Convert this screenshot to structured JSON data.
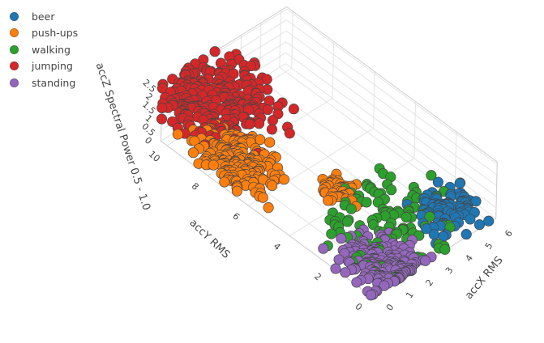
{
  "chart_data": {
    "type": "scatter3d",
    "axes": {
      "x": {
        "label": "accX RMS",
        "range": [
          0,
          6.3
        ],
        "ticks": [
          "0",
          "1",
          "2",
          "3",
          "4",
          "5",
          "6"
        ]
      },
      "y": {
        "label": "accY RMS",
        "range": [
          0,
          10.3
        ],
        "ticks": [
          "0",
          "2",
          "4",
          "6",
          "8",
          "10"
        ]
      },
      "z": {
        "label": "accZ Spectral Power 0.5 - 1.0",
        "range": [
          0,
          2.6
        ],
        "ticks": [
          "0",
          "0.5",
          "1",
          "1.5",
          "2",
          "2.5"
        ]
      }
    },
    "grid": true,
    "legend_placement": "top-left",
    "series": [
      {
        "name": "beer",
        "color": "#1f77b4",
        "n": 90,
        "center": {
          "x": 5.0,
          "y": 1.2,
          "z": 0.25
        },
        "spread": {
          "x": 0.7,
          "y": 0.45,
          "z": 0.2
        }
      },
      {
        "name": "push-ups",
        "color": "#ff7f0e",
        "n": 200,
        "center": {
          "x": 0.9,
          "y": 7.4,
          "z": 0.55
        },
        "spread": {
          "x": 0.6,
          "y": 0.9,
          "z": 0.2
        },
        "extra_cluster": {
          "n": 45,
          "center": {
            "x": 2.9,
            "y": 4.3,
            "z": 0.25
          },
          "spread": {
            "x": 0.35,
            "y": 0.35,
            "z": 0.12
          }
        }
      },
      {
        "name": "walking",
        "color": "#2ca02c",
        "n": 110,
        "center": {
          "x": 3.0,
          "y": 2.3,
          "z": 0.15
        },
        "spread": {
          "x": 1.2,
          "y": 1.2,
          "z": 0.15
        }
      },
      {
        "name": "jumping",
        "color": "#d62728",
        "n": 260,
        "center": {
          "x": 1.4,
          "y": 9.0,
          "z": 2.0
        },
        "spread": {
          "x": 1.1,
          "y": 1.0,
          "z": 0.45
        }
      },
      {
        "name": "standing",
        "color": "#9467bd",
        "n": 180,
        "center": {
          "x": 1.4,
          "y": 0.9,
          "z": 0.05
        },
        "spread": {
          "x": 0.7,
          "y": 0.8,
          "z": 0.08
        }
      }
    ]
  }
}
